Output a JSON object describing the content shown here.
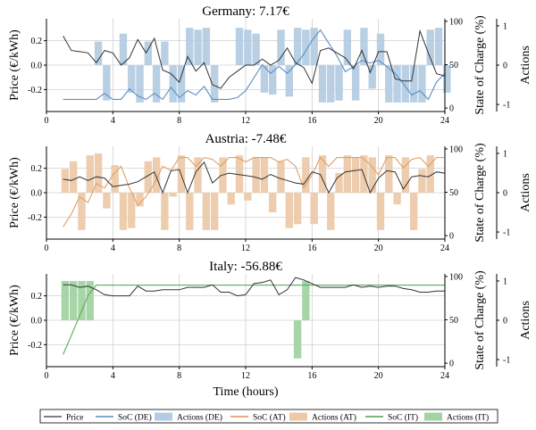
{
  "chart_data": [
    {
      "type": "line+bar",
      "title": "Germany: 7.17€",
      "xlabel": "",
      "ylabel": "Price (€/kWh)",
      "ylabel_right": "State of Charge (%)",
      "ylabel_actions": "Actions",
      "xlim": [
        0,
        24
      ],
      "ylim": [
        -0.38,
        0.38
      ],
      "soc_lim": [
        -4,
        103
      ],
      "actions_lim": [
        -1.18,
        1.18
      ],
      "xticks": [
        "0",
        "4",
        "8",
        "12",
        "16",
        "20",
        "24"
      ],
      "yticks": [
        "0.2",
        "0.0",
        "-0.2"
      ],
      "soc_ticks": [
        "100",
        "50",
        "0"
      ],
      "action_ticks": [
        "1",
        "0",
        "-1"
      ],
      "grid": true,
      "x": [
        1,
        1.5,
        2,
        2.5,
        3,
        3.5,
        4,
        4.5,
        5,
        5.5,
        6,
        6.5,
        7,
        7.5,
        8,
        8.5,
        9,
        9.5,
        10,
        10.5,
        11,
        11.5,
        12,
        12.5,
        13,
        13.5,
        14,
        14.5,
        15,
        15.5,
        16,
        16.5,
        17,
        17.5,
        18,
        18.5,
        19,
        19.5,
        20,
        20.5,
        21,
        21.5,
        22,
        22.5,
        23,
        23.5,
        24
      ],
      "series": [
        {
          "name": "Price",
          "kind": "line",
          "axis": "price",
          "color": "#333333",
          "values": [
            0.24,
            0.12,
            0.11,
            0.1,
            0.02,
            0.12,
            0.1,
            0.0,
            0.06,
            0.21,
            0.1,
            0.22,
            -0.04,
            -0.07,
            -0.14,
            0.07,
            -0.05,
            0.02,
            -0.16,
            -0.19,
            -0.1,
            -0.05,
            0.0,
            0.0,
            0.05,
            0.0,
            0.04,
            0.14,
            0.02,
            -0.02,
            -0.15,
            0.12,
            0.14,
            0.1,
            0.06,
            -0.03,
            0.12,
            -0.06,
            0.11,
            0.11,
            -0.11,
            -0.13,
            -0.13,
            0.28,
            0.1,
            -0.07,
            -0.09
          ]
        },
        {
          "name": "SoC (DE)",
          "kind": "line",
          "axis": "soc",
          "color": "#5b8fc4",
          "values": [
            10,
            10,
            10,
            10,
            10,
            17,
            10,
            10,
            22,
            14,
            10,
            17,
            10,
            24,
            12,
            20,
            15,
            25,
            10,
            10,
            10,
            12,
            20,
            35,
            50,
            40,
            48,
            40,
            50,
            62,
            78,
            90,
            75,
            60,
            42,
            48,
            55,
            52,
            55,
            48,
            40,
            28,
            15,
            20,
            10,
            30,
            40
          ]
        },
        {
          "name": "Actions (DE)",
          "kind": "bar",
          "axis": "actions",
          "color": "#b4cce3",
          "values": [
            0,
            0,
            0,
            0,
            0.6,
            -0.9,
            0,
            0.8,
            -0.7,
            -0.95,
            0.6,
            -0.95,
            0.6,
            -0.95,
            -0.95,
            0.95,
            0.9,
            0.95,
            -0.95,
            0,
            0,
            0.95,
            0.9,
            0.8,
            -0.7,
            -0.75,
            0.9,
            -0.8,
            0.95,
            0.9,
            0.95,
            -0.95,
            -0.95,
            -0.9,
            0.9,
            -0.9,
            0.95,
            -0.6,
            0.8,
            -0.95,
            -0.95,
            -0.95,
            -0.95,
            -0.95,
            0.9,
            0.95,
            -0.7
          ]
        }
      ]
    },
    {
      "type": "line+bar",
      "title": "Austria: -7.48€",
      "xlabel": "",
      "ylabel": "Price (€/kWh)",
      "ylabel_right": "State of Charge (%)",
      "ylabel_actions": "Actions",
      "xlim": [
        0,
        24
      ],
      "ylim": [
        -0.38,
        0.38
      ],
      "soc_lim": [
        -4,
        103
      ],
      "actions_lim": [
        -1.18,
        1.18
      ],
      "xticks": [
        "0",
        "4",
        "8",
        "12",
        "16",
        "20",
        "24"
      ],
      "yticks": [
        "0.2",
        "0.0",
        "-0.2"
      ],
      "soc_ticks": [
        "100",
        "50",
        "0"
      ],
      "action_ticks": [
        "1",
        "0",
        "-1"
      ],
      "grid": true,
      "x": [
        1,
        1.5,
        2,
        2.5,
        3,
        3.5,
        4,
        4.5,
        5,
        5.5,
        6,
        6.5,
        7,
        7.5,
        8,
        8.5,
        9,
        9.5,
        10,
        10.5,
        11,
        11.5,
        12,
        12.5,
        13,
        13.5,
        14,
        14.5,
        15,
        15.5,
        16,
        16.5,
        17,
        17.5,
        18,
        18.5,
        19,
        19.5,
        20,
        20.5,
        21,
        21.5,
        22,
        22.5,
        23,
        23.5,
        24
      ],
      "series": [
        {
          "name": "Price",
          "kind": "line",
          "axis": "price",
          "color": "#333333",
          "values": [
            0.11,
            0.1,
            0.13,
            0.1,
            0.13,
            0.12,
            0.05,
            0.06,
            0.07,
            0.09,
            0.13,
            0.17,
            0.0,
            0.18,
            0.19,
            0.0,
            0.17,
            0.25,
            0.08,
            0.14,
            0.16,
            0.15,
            0.14,
            0.13,
            0.11,
            0.15,
            0.12,
            0.1,
            0.08,
            0.07,
            0.17,
            0.15,
            0.0,
            0.12,
            0.17,
            0.18,
            0.19,
            0.0,
            0.12,
            0.18,
            0.17,
            0.03,
            0.13,
            0.14,
            0.13,
            0.17,
            0.16
          ]
        },
        {
          "name": "SoC (AT)",
          "kind": "line",
          "axis": "soc",
          "color": "#e0a06a",
          "values": [
            10,
            25,
            45,
            38,
            60,
            55,
            70,
            80,
            55,
            35,
            45,
            60,
            80,
            75,
            90,
            90,
            80,
            90,
            88,
            80,
            90,
            90,
            85,
            90,
            90,
            90,
            85,
            88,
            80,
            55,
            70,
            90,
            80,
            90,
            90,
            90,
            90,
            82,
            70,
            90,
            90,
            78,
            88,
            90,
            80,
            90,
            90
          ]
        },
        {
          "name": "Actions (AT)",
          "kind": "bar",
          "axis": "actions",
          "color": "#eccaa9",
          "values": [
            0.6,
            0.8,
            -0.95,
            0.95,
            1.0,
            -0.4,
            0.7,
            -0.95,
            -0.9,
            -0.35,
            0.8,
            0.9,
            -0.95,
            -0.1,
            0.95,
            -0.95,
            0.9,
            -0.95,
            -0.95,
            0.9,
            -0.3,
            0.95,
            -0.2,
            0.9,
            0.9,
            -0.5,
            0.8,
            -0.9,
            -0.8,
            0.9,
            -0.8,
            0.95,
            -0.95,
            0.5,
            0.95,
            0.9,
            0.95,
            0.9,
            -0.95,
            0.95,
            -0.3,
            0.9,
            -0.95,
            0.6,
            0.95,
            0,
            0
          ]
        }
      ]
    },
    {
      "type": "line+bar",
      "title": "Italy: -56.88€",
      "xlabel": "Time (hours)",
      "ylabel": "Price (€/kWh)",
      "ylabel_right": "State of Charge (%)",
      "ylabel_actions": "Actions",
      "xlim": [
        0,
        24
      ],
      "ylim": [
        -0.38,
        0.38
      ],
      "soc_lim": [
        -4,
        103
      ],
      "actions_lim": [
        -1.18,
        1.18
      ],
      "xticks": [
        "0",
        "4",
        "8",
        "12",
        "16",
        "20",
        "24"
      ],
      "yticks": [
        "0.2",
        "0.0",
        "-0.2"
      ],
      "soc_ticks": [
        "100",
        "50",
        "0"
      ],
      "action_ticks": [
        "1",
        "0",
        "-1"
      ],
      "grid": true,
      "x": [
        1,
        1.5,
        2,
        2.5,
        3,
        3.5,
        4,
        4.5,
        5,
        5.5,
        6,
        6.5,
        7,
        7.5,
        8,
        8.5,
        9,
        9.5,
        10,
        10.5,
        11,
        11.5,
        12,
        12.5,
        13,
        13.5,
        14,
        14.5,
        15,
        15.5,
        16,
        16.5,
        17,
        17.5,
        18,
        18.5,
        19,
        19.5,
        20,
        20.5,
        21,
        21.5,
        22,
        22.5,
        23,
        23.5,
        24
      ],
      "series": [
        {
          "name": "Price",
          "kind": "line",
          "axis": "price",
          "color": "#333333",
          "values": [
            0.29,
            0.29,
            0.27,
            0.28,
            0.25,
            0.21,
            0.2,
            0.2,
            0.2,
            0.28,
            0.24,
            0.24,
            0.25,
            0.25,
            0.25,
            0.27,
            0.27,
            0.27,
            0.29,
            0.23,
            0.23,
            0.2,
            0.21,
            0.3,
            0.31,
            0.33,
            0.21,
            0.25,
            0.35,
            0.33,
            0.3,
            0.27,
            0.27,
            0.27,
            0.27,
            0.29,
            0.27,
            0.28,
            0.27,
            0.28,
            0.28,
            0.26,
            0.25,
            0.23,
            0.23,
            0.24,
            0.24
          ]
        },
        {
          "name": "SoC (IT)",
          "kind": "line",
          "axis": "soc",
          "color": "#5aad5a",
          "values": [
            10,
            32,
            55,
            78,
            90,
            90,
            90,
            90,
            90,
            90,
            90,
            90,
            90,
            90,
            90,
            90,
            90,
            90,
            90,
            90,
            90,
            90,
            90,
            90,
            90,
            90,
            90,
            90,
            90,
            90,
            90,
            90,
            90,
            90,
            90,
            90,
            90,
            90,
            90,
            90,
            90,
            90,
            90,
            90,
            90,
            90,
            90
          ]
        },
        {
          "name": "Actions (IT)",
          "kind": "bar",
          "axis": "actions",
          "color": "#a3d3a3",
          "values": [
            1.0,
            1.0,
            1.0,
            1.0,
            0,
            0,
            0,
            0,
            0,
            0,
            0,
            0,
            0,
            0,
            0,
            0,
            0,
            0,
            0,
            0,
            0,
            0,
            0,
            0,
            0,
            0,
            0,
            0,
            -0.97,
            1.0,
            0,
            0,
            0,
            0,
            0,
            0,
            0,
            0,
            0,
            0,
            0,
            0,
            0,
            0,
            0,
            0,
            0
          ]
        }
      ]
    }
  ],
  "legend": {
    "placement": "bottom",
    "entries": [
      {
        "label": "Price",
        "kind": "line",
        "color": "#333333"
      },
      {
        "label": "SoC (DE)",
        "kind": "line",
        "color": "#3a78b5"
      },
      {
        "label": "Actions (DE)",
        "kind": "patch",
        "color": "#b4cce3"
      },
      {
        "label": "SoC (AT)",
        "kind": "line",
        "color": "#d97b34"
      },
      {
        "label": "Actions (AT)",
        "kind": "patch",
        "color": "#eccaa9"
      },
      {
        "label": "SoC (IT)",
        "kind": "line",
        "color": "#2e8b2e"
      },
      {
        "label": "Actions (IT)",
        "kind": "patch",
        "color": "#a3d3a3"
      }
    ]
  }
}
